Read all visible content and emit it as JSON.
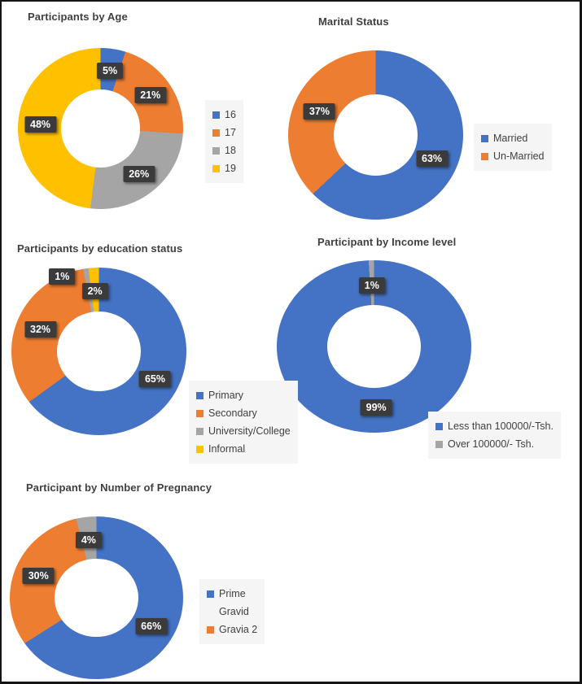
{
  "page": {
    "background": "#ffffff",
    "border_color": "#141414"
  },
  "styles": {
    "title_color": "#3F3F3F",
    "legend_bg": "#F5F5F5",
    "legend_text_color": "#404040",
    "badge_bg": "#3B3B3B",
    "badge_text_color": "#FFFFFF",
    "palette": {
      "blue": "#4472C4",
      "orange": "#ED7D31",
      "gray": "#A5A5A5",
      "yellow": "#FFC000"
    }
  },
  "chart_data": [
    {
      "type": "pie",
      "subtype": "donut",
      "title": "Participants by Age",
      "legend_position": "right",
      "data_label_format": "percent",
      "slices": [
        {
          "label": "16",
          "value": 5,
          "color": "#4472C4"
        },
        {
          "label": "17",
          "value": 21,
          "color": "#ED7D31"
        },
        {
          "label": "18",
          "value": 26,
          "color": "#A5A5A5"
        },
        {
          "label": "19",
          "value": 48,
          "color": "#FFC000"
        }
      ]
    },
    {
      "type": "pie",
      "subtype": "donut",
      "title": "Marital Status",
      "legend_position": "right",
      "data_label_format": "percent",
      "slices": [
        {
          "label": "Married",
          "value": 63,
          "color": "#4472C4"
        },
        {
          "label": "Un-Married",
          "value": 37,
          "color": "#ED7D31"
        }
      ]
    },
    {
      "type": "pie",
      "subtype": "donut",
      "title": "Participants by education status",
      "legend_position": "right",
      "data_label_format": "percent",
      "slices": [
        {
          "label": "Primary",
          "value": 65,
          "color": "#4472C4"
        },
        {
          "label": "Secondary",
          "value": 32,
          "color": "#ED7D31"
        },
        {
          "label": "University/College",
          "value": 1,
          "color": "#A5A5A5",
          "label_dx": -33,
          "label_dy": -19
        },
        {
          "label": "Informal",
          "value": 2,
          "color": "#FFC000"
        }
      ]
    },
    {
      "type": "pie",
      "subtype": "donut",
      "title": "Participant by Income level",
      "legend_position": "bottom-right",
      "data_label_format": "percent",
      "slices": [
        {
          "label": "Less than 100000/-Tsh.",
          "value": 99,
          "color": "#4472C4"
        },
        {
          "label": "Over 100000/- Tsh.",
          "value": 1,
          "color": "#A5A5A5"
        }
      ]
    },
    {
      "type": "pie",
      "subtype": "donut",
      "title": "Participant by Number of Pregnancy",
      "legend_position": "right",
      "data_label_format": "percent",
      "slices": [
        {
          "label": "Prime\nGravid",
          "value": 66,
          "color": "#4472C4"
        },
        {
          "label": "Gravia 2",
          "value": 30,
          "color": "#ED7D31"
        },
        {
          "label": "",
          "value": 4,
          "color": "#A5A5A5",
          "legend": false
        }
      ]
    }
  ]
}
